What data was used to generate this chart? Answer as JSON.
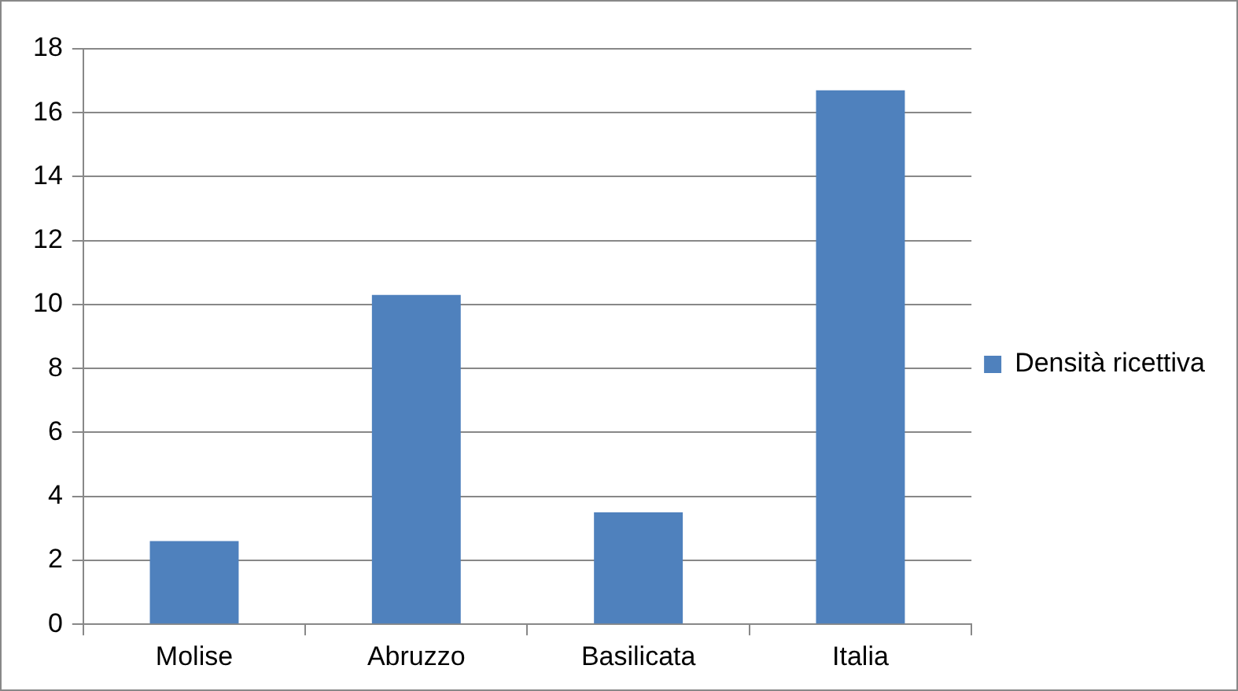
{
  "chart_data": {
    "type": "bar",
    "categories": [
      "Molise",
      "Abruzzo",
      "Basilicata",
      "Italia"
    ],
    "series": [
      {
        "name": "Densità ricettiva",
        "color": "#4f81bd",
        "values": [
          2.6,
          10.3,
          3.5,
          16.7
        ]
      }
    ],
    "ylim": [
      0,
      18
    ],
    "yticks": [
      0,
      2,
      4,
      6,
      8,
      10,
      12,
      14,
      16,
      18
    ],
    "grid": "y",
    "legend": "right"
  }
}
